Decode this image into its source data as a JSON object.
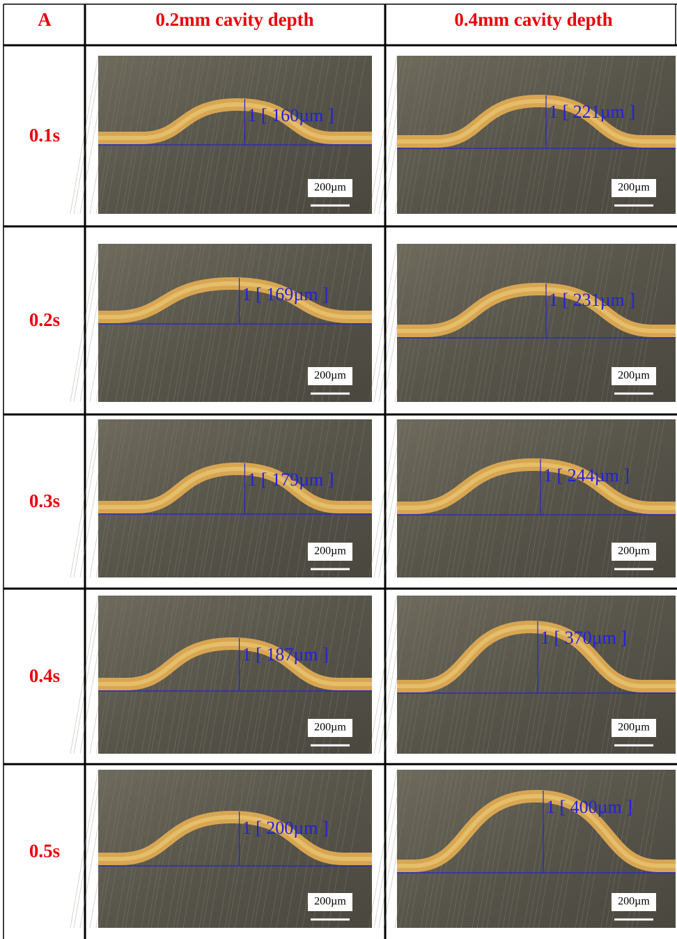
{
  "table": {
    "header": [
      "A",
      "0.2mm cavity depth",
      "0.4mm cavity depth"
    ],
    "rows": [
      {
        "label": "0.1s",
        "cells": [
          {
            "measurement": "1 [ 160µm ]",
            "scale": "200µm"
          },
          {
            "measurement": "1 [ 221µm ]",
            "scale": "200µm"
          }
        ]
      },
      {
        "label": "0.2s",
        "cells": [
          {
            "measurement": "1 [ 169µm ]",
            "scale": "200µm"
          },
          {
            "measurement": "1 [ 231µm ]",
            "scale": "200µm"
          }
        ]
      },
      {
        "label": "0.3s",
        "cells": [
          {
            "measurement": "1 [ 179µm ]",
            "scale": "200µm"
          },
          {
            "measurement": "1 [ 244µm ]",
            "scale": "200µm"
          }
        ]
      },
      {
        "label": "0.4s",
        "cells": [
          {
            "measurement": "1 [ 187µm ]",
            "scale": "200µm"
          },
          {
            "measurement": "1 [ 370µm ]",
            "scale": "200µm"
          }
        ]
      },
      {
        "label": "0.5s",
        "cells": [
          {
            "measurement": "1 [ 200µm ]",
            "scale": "200µm"
          },
          {
            "measurement": "1 [ 400µm ]",
            "scale": "200µm"
          }
        ]
      }
    ]
  }
}
